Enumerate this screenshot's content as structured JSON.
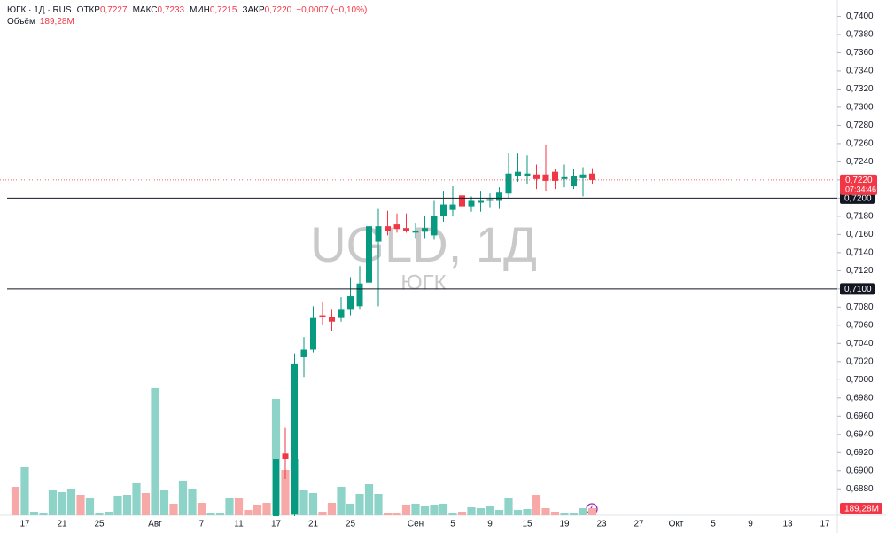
{
  "chart_data": {
    "type": "candlestick",
    "legend": {
      "symbol": "ЮГК · 1Д · RUS",
      "fields": [
        {
          "name": "ОТКР",
          "value": "0,7227"
        },
        {
          "name": "МАКС",
          "value": "0,7233"
        },
        {
          "name": "МИН",
          "value": "0,7215"
        },
        {
          "name": "ЗАКР",
          "value": "0,7220"
        }
      ],
      "change": "−0,0007 (−0,10%)",
      "volume_name": "Объём",
      "volume_value": "189,28M"
    },
    "watermark": "UGLD, 1Д",
    "watermark_sub": "ЮГК",
    "categories": [
      null,
      "17",
      null,
      null,
      null,
      "21",
      null,
      null,
      null,
      "25",
      null,
      null,
      null,
      null,
      null,
      "Авг",
      null,
      null,
      null,
      null,
      "7",
      null,
      null,
      null,
      "11",
      null,
      null,
      null,
      "17",
      null,
      null,
      null,
      "21",
      null,
      null,
      null,
      "25",
      null,
      null,
      null,
      null,
      null,
      null,
      "Сен",
      null,
      null,
      null,
      "5",
      null,
      null,
      null,
      "9",
      null,
      null,
      null,
      "15",
      null,
      null,
      null,
      "19",
      null,
      null,
      null,
      "23",
      null,
      null,
      null,
      "27",
      null,
      null,
      null,
      "Окт",
      null,
      null,
      null,
      "5",
      null,
      null,
      null,
      "9",
      null,
      null,
      null,
      "13",
      null,
      null,
      null,
      "17"
    ],
    "open": [
      null,
      null,
      null,
      null,
      null,
      null,
      null,
      null,
      null,
      null,
      null,
      null,
      null,
      null,
      null,
      null,
      null,
      null,
      null,
      null,
      null,
      null,
      null,
      null,
      null,
      null,
      null,
      null,
      0.685,
      0.6919,
      0.6852,
      0.7025,
      0.7033,
      0.7071,
      0.7069,
      0.7068,
      0.7078,
      0.7081,
      0.7107,
      0.7152,
      0.7169,
      0.7171,
      0.7167,
      0.7162,
      0.7163,
      0.7159,
      0.718,
      0.7187,
      0.7203,
      0.7191,
      0.7195,
      0.7197,
      0.7197,
      0.7205,
      0.7224,
      0.7224,
      0.7226,
      0.7226,
      0.7229,
      0.7221,
      0.7213,
      0.7222,
      0.7227,
      null,
      null,
      null,
      null,
      null,
      null,
      null,
      null,
      null,
      null,
      null,
      null,
      null,
      null,
      null,
      null,
      null,
      null,
      null,
      null,
      null,
      null,
      null,
      null,
      null
    ],
    "high": [
      null,
      null,
      null,
      null,
      null,
      null,
      null,
      null,
      null,
      null,
      null,
      null,
      null,
      null,
      null,
      null,
      null,
      null,
      null,
      null,
      null,
      null,
      null,
      null,
      null,
      null,
      null,
      null,
      0.6969,
      0.6947,
      0.7029,
      0.7047,
      0.7081,
      0.7086,
      0.7078,
      0.7091,
      0.7113,
      0.7125,
      0.7183,
      0.7188,
      0.7186,
      0.7183,
      0.7183,
      0.7172,
      0.718,
      0.7197,
      0.7208,
      0.7213,
      0.721,
      0.7202,
      0.7208,
      0.7205,
      0.7212,
      0.725,
      0.7249,
      0.7247,
      0.7237,
      0.7259,
      0.7232,
      0.7237,
      0.7232,
      0.7234,
      0.7233,
      null,
      null,
      null,
      null,
      null,
      null,
      null,
      null,
      null,
      null,
      null,
      null,
      null,
      null,
      null,
      null,
      null,
      null,
      null,
      null,
      null,
      null,
      null,
      null,
      null
    ],
    "low": [
      null,
      null,
      null,
      null,
      null,
      null,
      null,
      null,
      null,
      null,
      null,
      null,
      null,
      null,
      null,
      null,
      null,
      null,
      null,
      null,
      null,
      null,
      null,
      null,
      null,
      null,
      null,
      null,
      0.6848,
      0.6891,
      0.685,
      0.7003,
      0.703,
      0.706,
      0.7054,
      0.7064,
      0.7071,
      0.7078,
      0.7096,
      0.7081,
      0.7159,
      0.7162,
      0.7162,
      0.7156,
      0.7156,
      0.7154,
      0.7174,
      0.718,
      0.7185,
      0.7185,
      0.7185,
      0.719,
      0.7188,
      0.72,
      0.7218,
      0.7216,
      0.721,
      0.7208,
      0.721,
      0.7212,
      0.721,
      0.7202,
      0.7215,
      null,
      null,
      null,
      null,
      null,
      null,
      null,
      null,
      null,
      null,
      null,
      null,
      null,
      null,
      null,
      null,
      null,
      null,
      null,
      null,
      null,
      null,
      null,
      null,
      null
    ],
    "close": [
      null,
      null,
      null,
      null,
      null,
      null,
      null,
      null,
      null,
      null,
      null,
      null,
      null,
      null,
      null,
      null,
      null,
      null,
      null,
      null,
      null,
      null,
      null,
      null,
      null,
      null,
      null,
      null,
      0.6913,
      0.6913,
      0.7018,
      0.7033,
      0.7068,
      0.7069,
      0.7064,
      0.7078,
      0.7092,
      0.7106,
      0.7169,
      0.7169,
      0.7164,
      0.7166,
      0.7164,
      0.7164,
      0.7167,
      0.718,
      0.7193,
      0.7193,
      0.7191,
      0.7197,
      0.7197,
      0.7199,
      0.7206,
      0.7227,
      0.7229,
      0.7227,
      0.7221,
      0.7219,
      0.7219,
      0.7223,
      0.7224,
      0.7226,
      0.722,
      null,
      null,
      null,
      null,
      null,
      null,
      null,
      null,
      null,
      null,
      null,
      null,
      null,
      null,
      null,
      null,
      null,
      null,
      null,
      null,
      null,
      null,
      null,
      null,
      null
    ],
    "volume": [
      757,
      1278,
      95,
      47,
      662,
      615,
      710,
      544,
      473,
      47,
      95,
      521,
      544,
      852,
      592,
      3407,
      662,
      308,
      923,
      710,
      331,
      47,
      71,
      473,
      473,
      142,
      284,
      331,
      3100,
      1207,
      1514,
      662,
      592,
      95,
      331,
      757,
      308,
      568,
      828,
      568,
      47,
      47,
      284,
      308,
      260,
      284,
      308,
      71,
      95,
      213,
      189,
      237,
      142,
      473,
      142,
      166,
      544,
      189,
      95,
      47,
      71,
      189,
      189.28,
      null,
      null,
      null,
      null,
      null,
      null,
      null,
      null,
      null,
      null,
      null,
      null,
      null,
      null,
      null,
      null,
      null,
      null,
      null,
      null,
      null,
      null,
      null,
      null,
      null
    ],
    "volume_colors": [
      "#f7a9a7",
      "#8ed3c8",
      "#8ed3c8",
      "#8ed3c8",
      "#8ed3c8",
      "#8ed3c8",
      "#8ed3c8",
      "#f7a9a7",
      "#8ed3c8",
      "#8ed3c8",
      "#8ed3c8",
      "#8ed3c8",
      "#8ed3c8",
      "#8ed3c8",
      "#f7a9a7",
      "#8ed3c8",
      "#8ed3c8",
      "#f7a9a7",
      "#8ed3c8",
      "#8ed3c8",
      "#f7a9a7",
      "#8ed3c8",
      "#8ed3c8",
      "#8ed3c8",
      "#f7a9a7",
      "#f7a9a7",
      "#f7a9a7",
      "#f7a9a7",
      "#8ed3c8",
      "#f7a9a7",
      "#8ed3c8",
      "#8ed3c8",
      "#8ed3c8",
      "#f7a9a7",
      "#f7a9a7",
      "#8ed3c8",
      "#8ed3c8",
      "#8ed3c8",
      "#8ed3c8",
      "#8ed3c8",
      "#f7a9a7",
      "#f7a9a7",
      "#f7a9a7",
      "#8ed3c8",
      "#8ed3c8",
      "#8ed3c8",
      "#8ed3c8",
      "#8ed3c8",
      "#f7a9a7",
      "#8ed3c8",
      "#8ed3c8",
      "#8ed3c8",
      "#8ed3c8",
      "#8ed3c8",
      "#8ed3c8",
      "#8ed3c8",
      "#f7a9a7",
      "#f7a9a7",
      "#f7a9a7",
      "#8ed3c8",
      "#8ed3c8",
      "#8ed3c8",
      "#f7a9a7",
      null,
      null,
      null,
      null,
      null,
      null,
      null,
      null,
      null,
      null,
      null,
      null,
      null,
      null,
      null,
      null,
      null,
      null,
      null,
      null,
      null,
      null,
      null,
      null,
      null
    ],
    "up_color": "#089981",
    "down_color": "#f23645",
    "volume_lim": [
      0,
      3500
    ],
    "ylim": [
      0.6851,
      0.7418
    ],
    "yticks": [
      {
        "value": 0.688,
        "label": "0,6880"
      },
      {
        "value": 0.69,
        "label": "0,6900"
      },
      {
        "value": 0.692,
        "label": "0,6920"
      },
      {
        "value": 0.694,
        "label": "0,6940"
      },
      {
        "value": 0.696,
        "label": "0,6960"
      },
      {
        "value": 0.698,
        "label": "0,6980"
      },
      {
        "value": 0.7,
        "label": "0,7000"
      },
      {
        "value": 0.702,
        "label": "0,7020"
      },
      {
        "value": 0.704,
        "label": "0,7040"
      },
      {
        "value": 0.706,
        "label": "0,7060"
      },
      {
        "value": 0.708,
        "label": "0,7080"
      },
      {
        "value": 0.71,
        "label": "0,7100"
      },
      {
        "value": 0.712,
        "label": "0,7120"
      },
      {
        "value": 0.714,
        "label": "0,7140"
      },
      {
        "value": 0.716,
        "label": "0,7160"
      },
      {
        "value": 0.718,
        "label": "0,7180"
      },
      {
        "value": 0.72,
        "label": "0,7200"
      },
      {
        "value": 0.722,
        "label": "0,7220"
      },
      {
        "value": 0.724,
        "label": "0,7240"
      },
      {
        "value": 0.726,
        "label": "0,7260"
      },
      {
        "value": 0.728,
        "label": "0,7280"
      },
      {
        "value": 0.73,
        "label": "0,7300"
      },
      {
        "value": 0.732,
        "label": "0,7320"
      },
      {
        "value": 0.734,
        "label": "0,7340"
      },
      {
        "value": 0.736,
        "label": "0,7360"
      },
      {
        "value": 0.738,
        "label": "0,7380"
      },
      {
        "value": 0.74,
        "label": "0,7400"
      }
    ],
    "horizontal_lines": [
      {
        "value": 0.72,
        "label": "0,7200"
      },
      {
        "value": 0.71,
        "label": "0,7100"
      }
    ],
    "price_tag": {
      "label": "0,7220",
      "countdown": "07:34:46"
    },
    "grid": false
  }
}
